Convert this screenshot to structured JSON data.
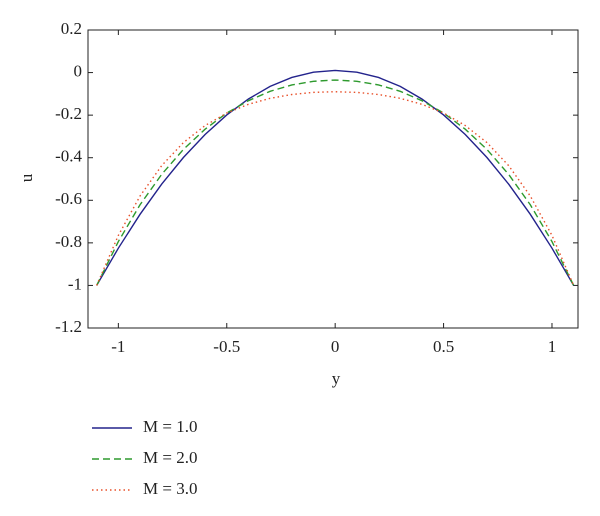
{
  "chart_data": {
    "type": "line",
    "xlabel": "y",
    "ylabel": "u",
    "x": [
      -1.1,
      -1.0,
      -0.9,
      -0.8,
      -0.7,
      -0.6,
      -0.5,
      -0.4,
      -0.3,
      -0.2,
      -0.1,
      0,
      0.1,
      0.2,
      0.3,
      0.4,
      0.5,
      0.6,
      0.7,
      0.8,
      0.9,
      1.0,
      1.1
    ],
    "series": [
      {
        "name": "M = 1.0",
        "color": "#23238c",
        "style": "solid",
        "values": [
          -1.0,
          -0.825,
          -0.666,
          -0.524,
          -0.399,
          -0.291,
          -0.199,
          -0.124,
          -0.065,
          -0.023,
          0.002,
          0.01,
          0.002,
          -0.023,
          -0.065,
          -0.124,
          -0.199,
          -0.291,
          -0.399,
          -0.524,
          -0.666,
          -0.825,
          -1.0
        ]
      },
      {
        "name": "M = 2.0",
        "color": "#2e9a2e",
        "style": "dashed",
        "values": [
          -1.0,
          -0.794,
          -0.621,
          -0.478,
          -0.361,
          -0.266,
          -0.19,
          -0.132,
          -0.088,
          -0.058,
          -0.041,
          -0.035,
          -0.041,
          -0.058,
          -0.088,
          -0.132,
          -0.19,
          -0.266,
          -0.361,
          -0.478,
          -0.621,
          -0.794,
          -1.0
        ]
      },
      {
        "name": "M = 3.0",
        "color": "#e8502a",
        "style": "dotted",
        "values": [
          -1.0,
          -0.765,
          -0.58,
          -0.437,
          -0.329,
          -0.249,
          -0.19,
          -0.149,
          -0.121,
          -0.103,
          -0.093,
          -0.09,
          -0.093,
          -0.103,
          -0.121,
          -0.149,
          -0.19,
          -0.249,
          -0.329,
          -0.437,
          -0.58,
          -0.765,
          -1.0
        ]
      }
    ],
    "xlim": [
      -1.14,
      1.12
    ],
    "xticks": [
      -1,
      -0.5,
      0,
      0.5,
      1
    ],
    "ylim": [
      -1.2,
      0.2
    ],
    "yticks": [
      0.2,
      0,
      -0.2,
      -0.4,
      -0.6,
      -0.8,
      -1,
      -1.2
    ],
    "legend": "below"
  }
}
